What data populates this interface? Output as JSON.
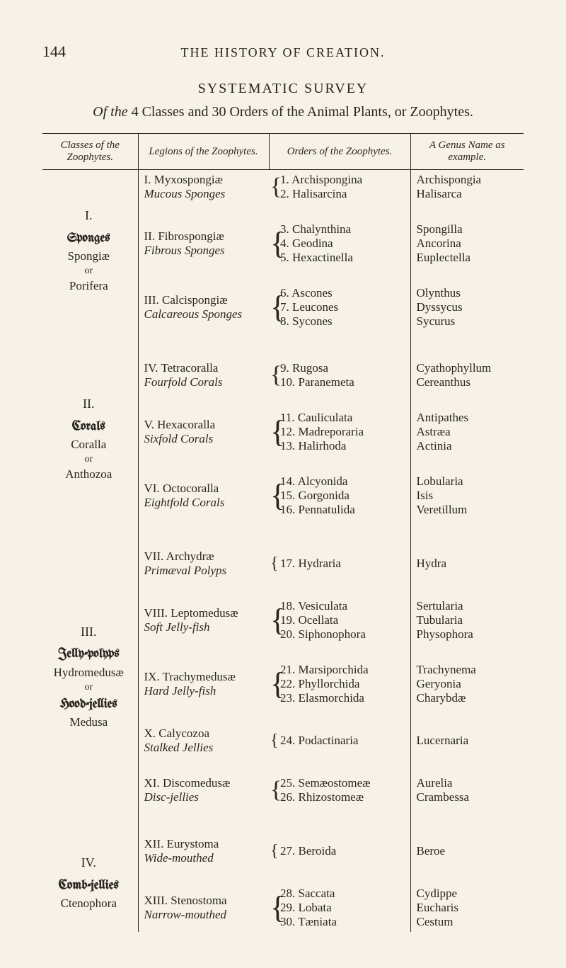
{
  "page_number": "144",
  "running_title": "THE HISTORY OF CREATION.",
  "survey_title": "SYSTEMATIC SURVEY",
  "survey_subtitle_prefix": "Of the ",
  "survey_subtitle_mid": "4 Classes and 30 Orders of the Animal Plants, or Zoophytes.",
  "columns": {
    "c1": "Classes of the Zoophytes.",
    "c2": "Legions of the Zoophytes.",
    "c3": "Orders of the Zoophytes.",
    "c4": "A Genus Name as example."
  },
  "classes": [
    {
      "roman": "I.",
      "gothic": "Sponges",
      "latin": "Spongiæ",
      "or": "or",
      "eng": "Porifera",
      "legions": [
        {
          "label": "I. Myxospongiæ",
          "eng": "Mucous Sponges",
          "orders": [
            {
              "n": "1.",
              "name": "Archispongina",
              "genus": "Archispongia"
            },
            {
              "n": "2.",
              "name": "Halisarcina",
              "genus": "Halisarca"
            }
          ]
        },
        {
          "label": "II. Fibrospongiæ",
          "eng": "Fibrous Sponges",
          "orders": [
            {
              "n": "3.",
              "name": "Chalynthina",
              "genus": "Spongilla"
            },
            {
              "n": "4.",
              "name": "Geodina",
              "genus": "Ancorina"
            },
            {
              "n": "5.",
              "name": "Hexactinella",
              "genus": "Euplectella"
            }
          ]
        },
        {
          "label": "III. Calcispongiæ",
          "eng": "Calcareous Sponges",
          "orders": [
            {
              "n": "6.",
              "name": "Ascones",
              "genus": "Olynthus"
            },
            {
              "n": "7.",
              "name": "Leucones",
              "genus": "Dyssycus"
            },
            {
              "n": "8.",
              "name": "Sycones",
              "genus": "Sycurus"
            }
          ]
        }
      ]
    },
    {
      "roman": "II.",
      "gothic": "Corals",
      "latin": "Coralla",
      "or": "or",
      "eng": "Anthozoa",
      "legions": [
        {
          "label": "IV. Tetracoralla",
          "eng": "Fourfold Corals",
          "orders": [
            {
              "n": "9.",
              "name": "Rugosa",
              "genus": "Cyathophyllum"
            },
            {
              "n": "10.",
              "name": "Paranemeta",
              "genus": "Cereanthus"
            }
          ]
        },
        {
          "label": "V. Hexacoralla",
          "eng": "Sixfold Corals",
          "orders": [
            {
              "n": "11.",
              "name": "Cauliculata",
              "genus": "Antipathes"
            },
            {
              "n": "12.",
              "name": "Madreporaria",
              "genus": "Astræa"
            },
            {
              "n": "13.",
              "name": "Halirhoda",
              "genus": "Actinia"
            }
          ]
        },
        {
          "label": "VI. Octocoralla",
          "eng": "Eightfold Corals",
          "orders": [
            {
              "n": "14.",
              "name": "Alcyonida",
              "genus": "Lobularia"
            },
            {
              "n": "15.",
              "name": "Gorgonida",
              "genus": "Isis"
            },
            {
              "n": "16.",
              "name": "Pennatulida",
              "genus": "Veretillum"
            }
          ]
        }
      ]
    },
    {
      "roman": "III.",
      "gothic": "Jelly-polyps",
      "latin": "Hydromedusæ",
      "or": "or",
      "gothic2": "Hood-jellies",
      "eng": "Medusa",
      "legions": [
        {
          "label": "VII. Archydræ",
          "eng": "Primæval Polyps",
          "orders": [
            {
              "n": "17.",
              "name": "Hydraria",
              "genus": "Hydra"
            }
          ]
        },
        {
          "label": "VIII. Leptomedusæ",
          "eng": "Soft Jelly-fish",
          "orders": [
            {
              "n": "18.",
              "name": "Vesiculata",
              "genus": "Sertularia"
            },
            {
              "n": "19.",
              "name": "Ocellata",
              "genus": "Tubularia"
            },
            {
              "n": "20.",
              "name": "Siphonophora",
              "genus": "Physophora"
            }
          ]
        },
        {
          "label": "IX. Trachymedusæ",
          "eng": "Hard Jelly-fish",
          "orders": [
            {
              "n": "21.",
              "name": "Marsiporchida",
              "genus": "Trachynema"
            },
            {
              "n": "22.",
              "name": "Phyllorchida",
              "genus": "Geryonia"
            },
            {
              "n": "23.",
              "name": "Elasmorchida",
              "genus": "Charybdæ"
            }
          ]
        },
        {
          "label": "X. Calycozoa",
          "eng": "Stalked Jellies",
          "orders": [
            {
              "n": "24.",
              "name": "Podactinaria",
              "genus": "Lucernaria"
            }
          ]
        },
        {
          "label": "XI. Discomedusæ",
          "eng": "Disc-jellies",
          "orders": [
            {
              "n": "25.",
              "name": "Semæostomeæ",
              "genus": "Aurelia"
            },
            {
              "n": "26.",
              "name": "Rhizostomeæ",
              "genus": "Crambessa"
            }
          ]
        }
      ]
    },
    {
      "roman": "IV.",
      "gothic": "Comb-jellies",
      "latin": "Ctenophora",
      "legions": [
        {
          "label": "XII. Eurystoma",
          "eng": "Wide-mouthed",
          "orders": [
            {
              "n": "27.",
              "name": "Beroida",
              "genus": "Beroe"
            }
          ]
        },
        {
          "label": "XIII. Stenostoma",
          "eng": "Narrow-mouthed",
          "orders": [
            {
              "n": "28.",
              "name": "Saccata",
              "genus": "Cydippe"
            },
            {
              "n": "29.",
              "name": "Lobata",
              "genus": "Eucharis"
            },
            {
              "n": "30.",
              "name": "Tæniata",
              "genus": "Cestum"
            }
          ]
        }
      ]
    }
  ]
}
